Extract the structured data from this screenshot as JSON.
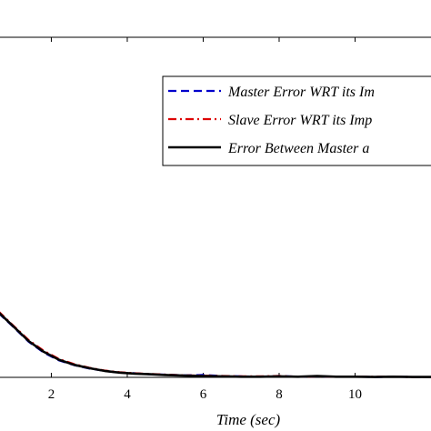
{
  "chart_data": {
    "type": "line",
    "xlabel": "Time (sec)",
    "ylabel": "",
    "title": "",
    "xlim": [
      0.6,
      12
    ],
    "ylim": [
      0,
      1
    ],
    "x_ticks": [
      2,
      4,
      6,
      8,
      10
    ],
    "x_tick_labels": [
      "2",
      "4",
      "6",
      "8",
      "10"
    ],
    "grid": false,
    "legend_position": "top-right",
    "series": [
      {
        "name": "Master Error WRT its Im",
        "color": "#0000cc",
        "style": "dashed",
        "x": [
          0.6,
          1.0,
          1.4,
          1.8,
          2.2,
          2.6,
          3.0,
          3.4,
          3.8,
          4.2,
          4.6,
          5.0,
          5.5,
          6.0,
          6.5,
          7.0,
          7.5,
          8.0,
          8.5,
          9.0,
          9.5,
          10.0,
          10.5,
          11.0,
          11.5,
          12.0
        ],
        "y": [
          0.19,
          0.148,
          0.105,
          0.073,
          0.05,
          0.036,
          0.026,
          0.019,
          0.014,
          0.012,
          0.009,
          0.008,
          0.006,
          0.007,
          0.004,
          0.003,
          0.002,
          0.004,
          0.002,
          0.003,
          0.002,
          0.002,
          0.001,
          0.002,
          0.001,
          0.001
        ]
      },
      {
        "name": "Slave Error WRT its Imp",
        "color": "#dd0000",
        "style": "dashdot",
        "x": [
          0.6,
          1.0,
          1.4,
          1.8,
          2.2,
          2.6,
          3.0,
          3.4,
          3.8,
          4.2,
          4.6,
          5.0,
          5.5,
          6.0,
          6.5,
          7.0,
          7.5,
          8.0,
          8.5,
          9.0,
          9.5,
          10.0,
          10.5,
          11.0,
          11.5,
          12.0
        ],
        "y": [
          0.195,
          0.152,
          0.11,
          0.078,
          0.054,
          0.039,
          0.028,
          0.02,
          0.015,
          0.012,
          0.01,
          0.008,
          0.006,
          0.005,
          0.004,
          0.003,
          0.003,
          0.004,
          0.002,
          0.003,
          0.002,
          0.002,
          0.002,
          0.002,
          0.001,
          0.001
        ]
      },
      {
        "name": "Error Between Master a",
        "color": "#000000",
        "style": "solid",
        "x": [
          0.6,
          1.0,
          1.4,
          1.8,
          2.2,
          2.6,
          3.0,
          3.4,
          3.8,
          4.2,
          4.6,
          5.0,
          5.5,
          6.0,
          6.5,
          7.0,
          7.5,
          8.0,
          8.5,
          9.0,
          9.5,
          10.0,
          10.5,
          11.0,
          11.5,
          12.0
        ],
        "y": [
          0.192,
          0.15,
          0.107,
          0.075,
          0.052,
          0.037,
          0.027,
          0.019,
          0.014,
          0.011,
          0.009,
          0.007,
          0.005,
          0.004,
          0.003,
          0.002,
          0.002,
          0.003,
          0.002,
          0.004,
          0.002,
          0.002,
          0.001,
          0.002,
          0.001,
          0.001
        ]
      }
    ]
  }
}
